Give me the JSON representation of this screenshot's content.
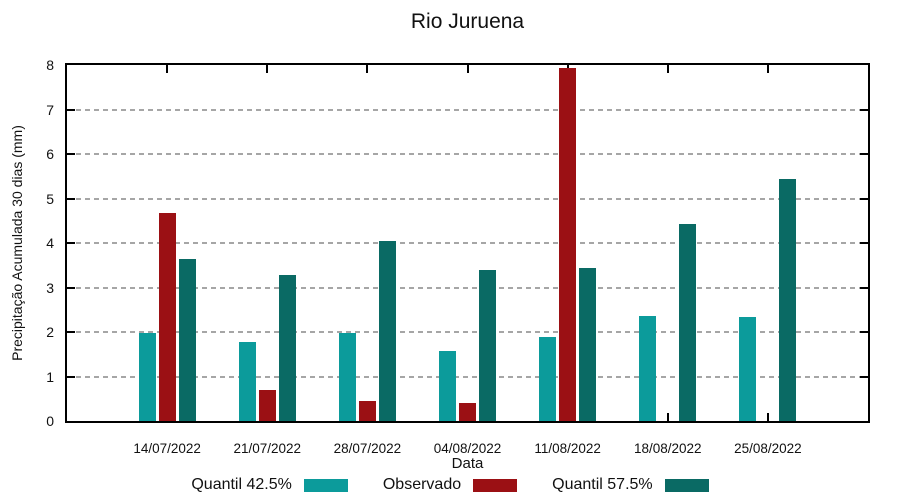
{
  "chart_data": {
    "type": "bar",
    "title": "Rio Juruena",
    "xlabel": "Data",
    "ylabel": "Precipitação Acumulada 30 dias (mm)",
    "ylim": [
      0,
      8
    ],
    "ytick_step": 1,
    "ytick_labels": [
      "0",
      "1",
      "2",
      "3",
      "4",
      "5",
      "6",
      "7",
      "8"
    ],
    "grid": "horizontal-dashed",
    "gridline_color": "#a6a6a6",
    "axis_color": "#000000",
    "legend_position": "bottom-center",
    "categories": [
      "14/07/2022",
      "21/07/2022",
      "28/07/2022",
      "04/08/2022",
      "11/08/2022",
      "18/08/2022",
      "25/08/2022"
    ],
    "series": [
      {
        "name": "Quantil 42.5%",
        "color": "#0C9B9B",
        "values": [
          1.97,
          1.78,
          1.97,
          1.58,
          1.89,
          2.36,
          2.33
        ]
      },
      {
        "name": "Observado",
        "color": "#9B1014",
        "values": [
          4.68,
          0.69,
          0.44,
          0.4,
          7.93,
          0,
          0
        ]
      },
      {
        "name": "Quantil 57.5%",
        "color": "#0A6A64",
        "values": [
          3.64,
          3.28,
          4.04,
          3.4,
          3.44,
          4.42,
          5.44
        ]
      }
    ]
  }
}
